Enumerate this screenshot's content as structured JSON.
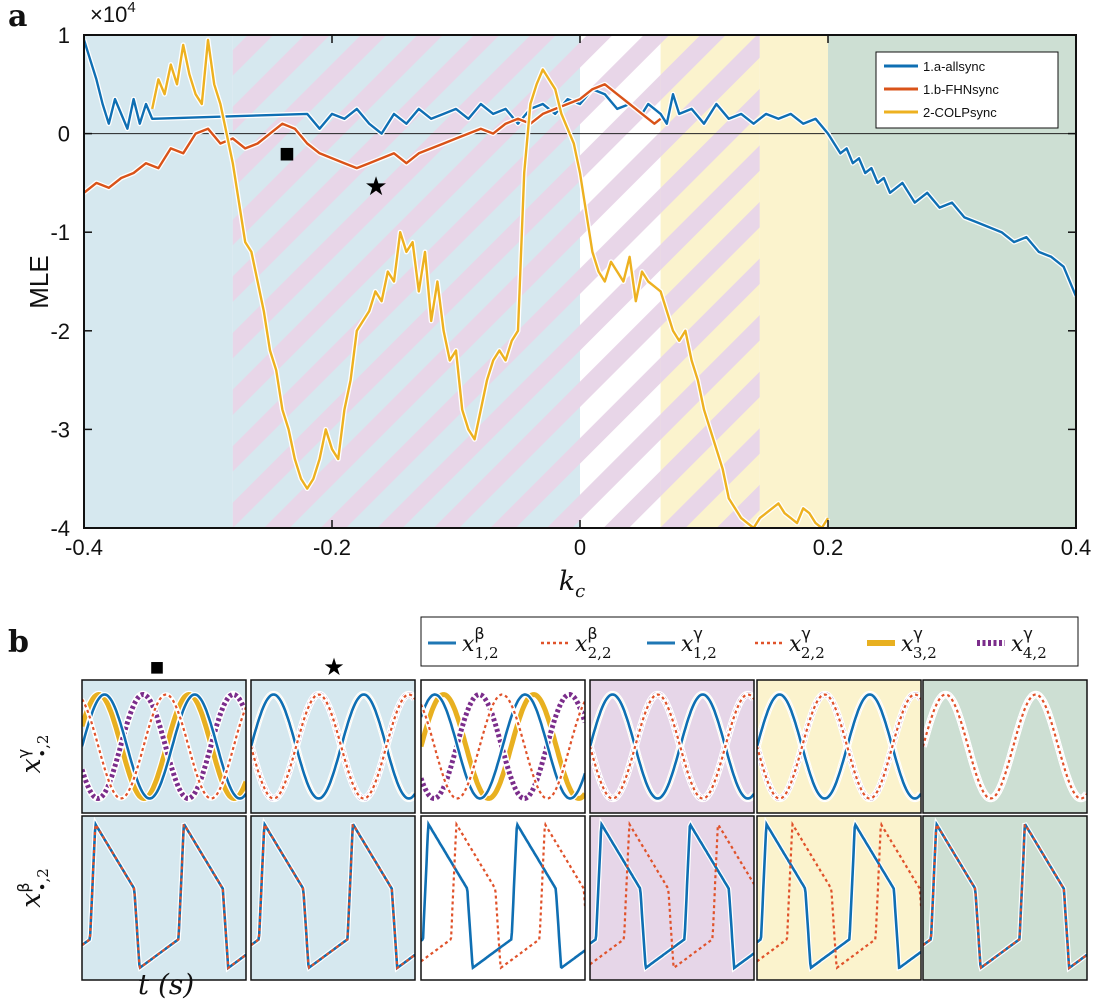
{
  "panel_a": {
    "letter": "a",
    "exponent_label": "×10",
    "exponent_power": "4",
    "ylabel": "MLE",
    "xlabel_symbol": "k",
    "xlabel_subscript": "c",
    "square_marker": "■",
    "star_marker": "★"
  },
  "panel_b": {
    "letter": "b",
    "xlabel": "t (s)",
    "ylabel_top_symbol": "x",
    "ylabel_top_sup": "γ",
    "ylabel_top_sub": "•,2",
    "ylabel_bottom_symbol": "x",
    "ylabel_bottom_sup": "β",
    "ylabel_bottom_sub": "•,2",
    "square_marker": "■",
    "star_marker": "★",
    "legend": [
      {
        "symbol": "x",
        "sup": "β",
        "sub": "1,2",
        "color": "#1f77b4",
        "style": "solid"
      },
      {
        "symbol": "x",
        "sup": "β",
        "sub": "2,2",
        "color": "#e0522a",
        "style": "dotted"
      },
      {
        "symbol": "x",
        "sup": "γ",
        "sub": "1,2",
        "color": "#1f77b4",
        "style": "solid"
      },
      {
        "symbol": "x",
        "sup": "γ",
        "sub": "2,2",
        "color": "#e0522a",
        "style": "dotted"
      },
      {
        "symbol": "x",
        "sup": "γ",
        "sub": "3,2",
        "color": "#e8b020",
        "style": "thick"
      },
      {
        "symbol": "x",
        "sup": "γ",
        "sub": "4,2",
        "color": "#7b2d8b",
        "style": "thickdotted"
      }
    ],
    "subpanel_backgrounds": [
      "#d6e8ef",
      "#d6e8ef",
      "#ffffff",
      "#e6d6e8",
      "#fbf3cd",
      "#cddfd3"
    ]
  },
  "colors": {
    "allsync": "#0f6fb3",
    "fhnsync": "#d95319",
    "colpsync": "#edb120",
    "region_blue": "#d6e8ef",
    "region_pink": "#e8d6e8",
    "region_yellow": "#fbf3cd",
    "region_green": "#cddfd3"
  },
  "chart_data": [
    {
      "type": "line",
      "title": "",
      "xlabel": "k_c",
      "ylabel": "MLE",
      "y_scale_factor": "×10^4",
      "xlim": [
        -0.4,
        0.4
      ],
      "ylim": [
        -4,
        1
      ],
      "xticks": [
        "-0.4",
        "-0.2",
        "0",
        "0.2",
        "0.4"
      ],
      "yticks": [
        "1",
        "0",
        "-1",
        "-2",
        "-3",
        "-4"
      ],
      "grid": false,
      "legend_position": "top-right",
      "regions": [
        {
          "from": -0.4,
          "to": -0.28,
          "fill": "blue"
        },
        {
          "from": -0.28,
          "to": 0.0,
          "fill": "blue with pink stripes"
        },
        {
          "from": 0.0,
          "to": 0.065,
          "fill": "white with pink stripes"
        },
        {
          "from": 0.065,
          "to": 0.145,
          "fill": "yellow with pink stripes"
        },
        {
          "from": 0.145,
          "to": 0.2,
          "fill": "yellow"
        },
        {
          "from": 0.2,
          "to": 0.4,
          "fill": "green"
        }
      ],
      "annotations": [
        {
          "marker": "square",
          "x": -0.236,
          "y": -0.2
        },
        {
          "marker": "star",
          "x": -0.166,
          "y": -0.55
        }
      ],
      "series": [
        {
          "name": "1.a-allsync",
          "color": "#0f6fb3",
          "x": [
            -0.4,
            -0.395,
            -0.39,
            -0.385,
            -0.38,
            -0.375,
            -0.37,
            -0.365,
            -0.36,
            -0.355,
            -0.35,
            -0.345,
            -0.22,
            -0.21,
            -0.2,
            -0.19,
            -0.18,
            -0.17,
            -0.16,
            -0.15,
            -0.14,
            -0.13,
            -0.12,
            -0.11,
            -0.1,
            -0.09,
            -0.08,
            -0.07,
            -0.06,
            -0.05,
            -0.04,
            -0.03,
            -0.02,
            -0.01,
            0.0,
            0.01,
            0.02,
            0.03,
            0.04,
            0.05,
            0.055,
            0.06,
            0.065,
            0.07,
            0.075,
            0.08,
            0.09,
            0.1,
            0.11,
            0.12,
            0.13,
            0.14,
            0.15,
            0.16,
            0.17,
            0.18,
            0.19,
            0.2,
            0.205,
            0.21,
            0.215,
            0.22,
            0.225,
            0.23,
            0.235,
            0.24,
            0.245,
            0.25,
            0.26,
            0.27,
            0.28,
            0.29,
            0.3,
            0.31,
            0.32,
            0.33,
            0.34,
            0.35,
            0.36,
            0.37,
            0.38,
            0.39,
            0.4
          ],
          "values": [
            0.95,
            0.75,
            0.55,
            0.3,
            0.1,
            0.35,
            0.2,
            0.05,
            0.35,
            0.1,
            0.3,
            0.15,
            0.2,
            0.05,
            0.2,
            0.15,
            0.25,
            0.1,
            0.0,
            0.2,
            0.1,
            0.25,
            0.15,
            0.2,
            0.25,
            0.15,
            0.3,
            0.2,
            0.25,
            0.1,
            0.25,
            0.3,
            0.2,
            0.35,
            0.3,
            0.45,
            0.4,
            0.25,
            0.3,
            0.2,
            0.3,
            0.25,
            0.2,
            0.1,
            0.4,
            0.2,
            0.25,
            0.1,
            0.3,
            0.15,
            0.2,
            0.1,
            0.2,
            0.15,
            0.2,
            0.1,
            0.15,
            0.0,
            -0.1,
            -0.2,
            -0.15,
            -0.3,
            -0.25,
            -0.4,
            -0.35,
            -0.5,
            -0.45,
            -0.6,
            -0.5,
            -0.7,
            -0.6,
            -0.75,
            -0.7,
            -0.85,
            -0.9,
            -0.95,
            -1.0,
            -1.1,
            -1.05,
            -1.2,
            -1.25,
            -1.35,
            -1.65
          ]
        },
        {
          "name": "1.b-FHNsync",
          "color": "#d95319",
          "x": [
            -0.4,
            -0.39,
            -0.38,
            -0.37,
            -0.36,
            -0.35,
            -0.34,
            -0.33,
            -0.32,
            -0.31,
            -0.3,
            -0.29,
            -0.28,
            -0.27,
            -0.26,
            -0.25,
            -0.24,
            -0.23,
            -0.22,
            -0.21,
            -0.2,
            -0.19,
            -0.18,
            -0.17,
            -0.16,
            -0.15,
            -0.14,
            -0.13,
            -0.12,
            -0.11,
            -0.1,
            -0.09,
            -0.08,
            -0.07,
            -0.06,
            -0.05,
            -0.04,
            -0.03,
            -0.02,
            -0.01,
            0.0,
            0.01,
            0.02,
            0.03,
            0.04,
            0.05,
            0.06,
            0.065
          ],
          "values": [
            -0.6,
            -0.5,
            -0.55,
            -0.45,
            -0.4,
            -0.3,
            -0.35,
            -0.15,
            -0.2,
            0.0,
            0.05,
            -0.1,
            -0.05,
            -0.15,
            -0.1,
            0.0,
            0.1,
            0.05,
            -0.1,
            -0.2,
            -0.25,
            -0.3,
            -0.35,
            -0.3,
            -0.25,
            -0.2,
            -0.3,
            -0.2,
            -0.15,
            -0.1,
            -0.05,
            0.0,
            0.05,
            0.0,
            0.1,
            0.15,
            0.1,
            0.2,
            0.25,
            0.3,
            0.35,
            0.45,
            0.5,
            0.4,
            0.3,
            0.2,
            0.1,
            0.15
          ]
        },
        {
          "name": "2-COLPsync",
          "color": "#edb120",
          "x": [
            -0.345,
            -0.34,
            -0.335,
            -0.33,
            -0.325,
            -0.32,
            -0.315,
            -0.31,
            -0.305,
            -0.3,
            -0.295,
            -0.29,
            -0.285,
            -0.28,
            -0.275,
            -0.27,
            -0.265,
            -0.26,
            -0.255,
            -0.25,
            -0.245,
            -0.24,
            -0.235,
            -0.23,
            -0.225,
            -0.22,
            -0.215,
            -0.21,
            -0.205,
            -0.2,
            -0.195,
            -0.19,
            -0.185,
            -0.18,
            -0.175,
            -0.17,
            -0.165,
            -0.16,
            -0.155,
            -0.15,
            -0.145,
            -0.14,
            -0.135,
            -0.13,
            -0.125,
            -0.12,
            -0.115,
            -0.11,
            -0.105,
            -0.1,
            -0.095,
            -0.09,
            -0.085,
            -0.08,
            -0.075,
            -0.07,
            -0.065,
            -0.06,
            -0.055,
            -0.05,
            -0.045,
            -0.04,
            -0.035,
            -0.03,
            -0.025,
            -0.02,
            -0.015,
            -0.01,
            -0.005,
            0.0,
            0.005,
            0.01,
            0.015,
            0.02,
            0.025,
            0.03,
            0.035,
            0.04,
            0.045,
            0.05,
            0.055,
            0.06,
            0.065,
            0.07,
            0.075,
            0.08,
            0.085,
            0.09,
            0.095,
            0.1,
            0.105,
            0.11,
            0.115,
            0.12,
            0.125,
            0.13,
            0.135,
            0.14,
            0.145,
            0.15,
            0.155,
            0.16,
            0.165,
            0.17,
            0.175,
            0.18,
            0.185,
            0.19,
            0.195,
            0.2
          ],
          "values": [
            0.25,
            0.55,
            0.4,
            0.7,
            0.5,
            0.9,
            0.6,
            0.4,
            0.3,
            0.95,
            0.5,
            0.3,
            0.0,
            -0.3,
            -0.7,
            -1.1,
            -1.2,
            -1.5,
            -1.8,
            -2.2,
            -2.4,
            -2.8,
            -3.0,
            -3.3,
            -3.5,
            -3.6,
            -3.5,
            -3.3,
            -3.0,
            -3.2,
            -3.3,
            -2.8,
            -2.5,
            -2.0,
            -1.9,
            -1.8,
            -1.6,
            -1.7,
            -1.4,
            -1.5,
            -1.0,
            -1.2,
            -1.1,
            -1.6,
            -1.2,
            -1.9,
            -1.5,
            -2.0,
            -2.3,
            -2.2,
            -2.8,
            -3.0,
            -3.1,
            -2.8,
            -2.5,
            -2.3,
            -2.2,
            -2.3,
            -2.1,
            -2.0,
            -0.4,
            0.3,
            0.5,
            0.65,
            0.55,
            0.45,
            0.2,
            0.05,
            -0.1,
            -0.4,
            -0.8,
            -1.2,
            -1.4,
            -1.5,
            -1.3,
            -1.4,
            -1.5,
            -1.25,
            -1.7,
            -1.4,
            -1.5,
            -1.55,
            -1.6,
            -1.8,
            -2.0,
            -2.1,
            -2.0,
            -2.3,
            -2.5,
            -2.8,
            -3.0,
            -3.2,
            -3.4,
            -3.7,
            -3.8,
            -3.9,
            -3.95,
            -4.0,
            -3.9,
            -3.85,
            -3.8,
            -3.75,
            -3.85,
            -3.9,
            -3.95,
            -3.8,
            -3.85,
            -3.95,
            -4.0,
            -3.9
          ]
        }
      ]
    }
  ]
}
